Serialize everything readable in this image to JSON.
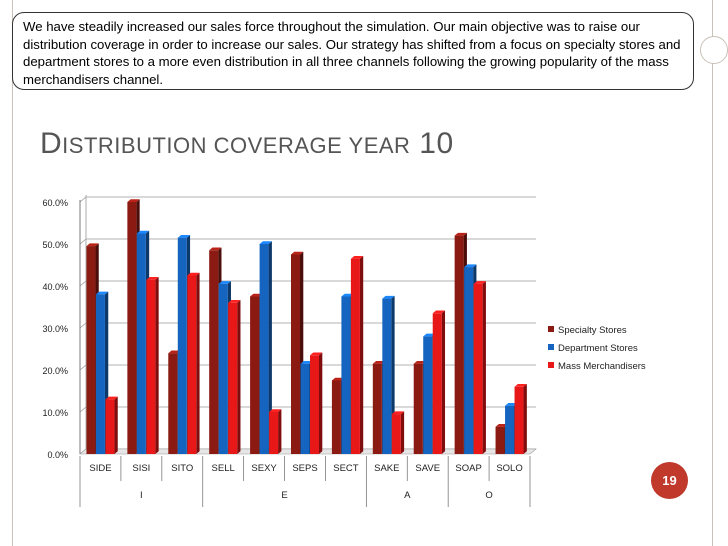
{
  "callout": {
    "text": "We have steadily increased our sales force throughout the simulation.  Our main objective was to raise our distribution coverage in order to increase our sales.  Our strategy has shifted from a focus on specialty stores and department stores to a more even distribution in all three channels following the growing popularity of the mass merchandisers channel."
  },
  "slide": {
    "title_first": "D",
    "title_rest": "ISTRIBUTION COVERAGE YEAR",
    "title_number": "10",
    "page_number": "19"
  },
  "colors": {
    "specialty": "#8b1a12",
    "department": "#1565c0",
    "mass": "#e81818",
    "accent": "#c0392b"
  },
  "chart_data": {
    "type": "bar",
    "title": "Distribution coverage year 10",
    "categories": [
      "SIDE",
      "SISI",
      "SITO",
      "SELL",
      "SEXY",
      "SEPS",
      "SECT",
      "SAKE",
      "SAVE",
      "SOAP",
      "SOLO"
    ],
    "groups": [
      {
        "label": "I",
        "span": 3
      },
      {
        "label": "E",
        "span": 4
      },
      {
        "label": "A",
        "span": 2
      },
      {
        "label": "O",
        "span": 2
      }
    ],
    "series": [
      {
        "name": "Specialty Stores",
        "values": [
          49.5,
          60.0,
          24.0,
          48.5,
          37.5,
          47.5,
          17.5,
          21.5,
          21.5,
          52.0,
          6.5
        ]
      },
      {
        "name": "Department Stores",
        "values": [
          38.0,
          52.5,
          51.5,
          40.5,
          50.0,
          21.5,
          37.5,
          37.0,
          28.0,
          44.5,
          11.5
        ]
      },
      {
        "name": "Mass Merchandisers",
        "values": [
          13.0,
          41.5,
          42.5,
          36.0,
          10.0,
          23.5,
          46.5,
          9.5,
          33.5,
          40.5,
          16.0
        ]
      }
    ],
    "yticks": [
      "0.0%",
      "10.0%",
      "20.0%",
      "30.0%",
      "40.0%",
      "50.0%",
      "60.0%"
    ],
    "ylim": [
      0,
      60
    ],
    "legend": "right"
  }
}
